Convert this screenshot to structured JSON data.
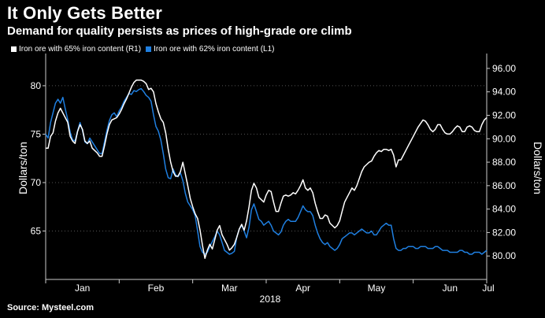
{
  "header": {
    "title": "It Only Gets Better",
    "subtitle": "Demand for quality persists as prices of high-grade ore climb"
  },
  "footer": {
    "source": "Source: Mysteel.com"
  },
  "colors": {
    "background": "#000000",
    "series_white": "#ffffff",
    "series_blue": "#1f7fe0",
    "grid": "#555555"
  },
  "chart_data": {
    "type": "line",
    "title": "",
    "xlabel": "",
    "x_tick_labels": [
      "Jan",
      "Feb",
      "Mar",
      "Apr",
      "May",
      "Jun",
      "Jul"
    ],
    "year_label": "2018",
    "left_axis": {
      "label": "Dollars/ton",
      "ylim": [
        60,
        83
      ],
      "ticks": [
        "65",
        "70",
        "75",
        "80"
      ]
    },
    "right_axis": {
      "label": "Dollars/ton",
      "ylim": [
        78,
        97
      ],
      "ticks": [
        "80.00",
        "82.00",
        "84.00",
        "86.00",
        "88.00",
        "90.00",
        "92.00",
        "94.00",
        "96.00"
      ]
    },
    "grid": "horizontal dotted",
    "legend_placement": "top-left",
    "series": [
      {
        "name": "Iron ore with 65% iron content (R1)",
        "axis": "right",
        "color": "#ffffff",
        "x": [
          0,
          1,
          2,
          3,
          4,
          5,
          6,
          7,
          8,
          9,
          10,
          11,
          12,
          13,
          14,
          15,
          16,
          17,
          18,
          19,
          20,
          21,
          22,
          23,
          24,
          25,
          26,
          27,
          28,
          29,
          30,
          31,
          32,
          33,
          34,
          35,
          36,
          37,
          38,
          39,
          40,
          41,
          42,
          43,
          44,
          45,
          46,
          47,
          48,
          49,
          50,
          51,
          52,
          53,
          54,
          55,
          56,
          57,
          58,
          59,
          60,
          61,
          62,
          63,
          64,
          65,
          66,
          67,
          68,
          69,
          70,
          71,
          72,
          73,
          74,
          75,
          76,
          77,
          78,
          79,
          80,
          81,
          82,
          83,
          84,
          85,
          86,
          87,
          88,
          89,
          90,
          91,
          92,
          93,
          94,
          95,
          96,
          97,
          98,
          99,
          100,
          101,
          102,
          103,
          104,
          105,
          106,
          107,
          108,
          109,
          110,
          111,
          112,
          113,
          114,
          115,
          116,
          117,
          118,
          119,
          120,
          121,
          122,
          123,
          124,
          125,
          126,
          127,
          128,
          129,
          130,
          131,
          132,
          133,
          134,
          135,
          136,
          137,
          138,
          139,
          140,
          141,
          142,
          143,
          144,
          145,
          146,
          147,
          148,
          149,
          150,
          151,
          152,
          153,
          154,
          155,
          156,
          157,
          158,
          159,
          160,
          161,
          162,
          163,
          164,
          165,
          166,
          167,
          168,
          169,
          170,
          171,
          172,
          173,
          174,
          175,
          176,
          177,
          178,
          179,
          180
        ],
        "values": [
          89.2,
          89.2,
          90.2,
          90.5,
          91.5,
          92.2,
          92.6,
          92.2,
          91.8,
          91.4,
          90.2,
          89.8,
          89.6,
          90.6,
          91.2,
          90.8,
          89.8,
          89.6,
          89.8,
          89.2,
          89.0,
          88.8,
          88.5,
          88.5,
          89.4,
          90.4,
          91.2,
          91.6,
          91.7,
          91.8,
          92.1,
          92.5,
          93.0,
          93.4,
          93.9,
          94.4,
          94.8,
          95.0,
          95.0,
          95.0,
          94.9,
          94.7,
          94.2,
          94.3,
          94.0,
          93.0,
          92.3,
          91.7,
          91.4,
          90.5,
          89.1,
          88.0,
          87.2,
          86.8,
          86.8,
          87.2,
          88.0,
          87.0,
          86.0,
          84.9,
          84.2,
          83.6,
          83.2,
          82.2,
          80.9,
          79.8,
          80.5,
          81.0,
          80.6,
          81.4,
          82.2,
          82.6,
          81.8,
          81.4,
          81.0,
          80.5,
          80.7,
          81.0,
          81.6,
          82.3,
          82.7,
          82.2,
          83.0,
          84.2,
          85.6,
          86.2,
          85.8,
          85.0,
          84.8,
          84.6,
          85.2,
          85.6,
          85.5,
          84.6,
          83.8,
          83.8,
          84.5,
          85.1,
          85.2,
          85.1,
          85.2,
          85.4,
          85.3,
          85.6,
          86.0,
          86.5,
          85.8,
          85.6,
          85.8,
          85.4,
          84.5,
          83.8,
          83.2,
          83.2,
          83.5,
          83.4,
          82.8,
          82.6,
          82.4,
          82.6,
          83.0,
          83.8,
          84.6,
          85.0,
          85.4,
          85.8,
          85.6,
          86.0,
          86.6,
          87.2,
          87.6,
          87.8,
          88.0,
          88.1,
          88.5,
          88.8,
          89.0,
          88.9,
          89.1,
          89.1,
          89.0,
          89.1,
          88.6,
          87.6,
          88.2,
          88.2,
          88.6,
          89.0,
          89.4,
          89.8,
          90.2,
          90.6,
          91.0,
          91.3,
          91.6,
          91.5,
          91.2,
          90.8,
          90.6,
          90.8,
          91.2,
          91.2,
          90.8,
          90.5,
          90.4,
          90.4,
          90.6,
          90.9,
          91.1,
          91.0,
          90.6,
          90.6,
          91.0,
          91.1,
          91.0,
          90.7,
          90.6,
          90.6,
          91.2,
          91.6,
          91.8
        ]
      },
      {
        "name": "Iron ore with 62% iron content (L1)",
        "axis": "left",
        "color": "#1f7fe0",
        "x": [
          0,
          1,
          2,
          3,
          4,
          5,
          6,
          7,
          8,
          9,
          10,
          11,
          12,
          13,
          14,
          15,
          16,
          17,
          18,
          19,
          20,
          21,
          22,
          23,
          24,
          25,
          26,
          27,
          28,
          29,
          30,
          31,
          32,
          33,
          34,
          35,
          36,
          37,
          38,
          39,
          40,
          41,
          42,
          43,
          44,
          45,
          46,
          47,
          48,
          49,
          50,
          51,
          52,
          53,
          54,
          55,
          56,
          57,
          58,
          59,
          60,
          61,
          62,
          63,
          64,
          65,
          66,
          67,
          68,
          69,
          70,
          71,
          72,
          73,
          74,
          75,
          76,
          77,
          78,
          79,
          80,
          81,
          82,
          83,
          84,
          85,
          86,
          87,
          88,
          89,
          90,
          91,
          92,
          93,
          94,
          95,
          96,
          97,
          98,
          99,
          100,
          101,
          102,
          103,
          104,
          105,
          106,
          107,
          108,
          109,
          110,
          111,
          112,
          113,
          114,
          115,
          116,
          117,
          118,
          119,
          120,
          121,
          122,
          123,
          124,
          125,
          126,
          127,
          128,
          129,
          130,
          131,
          132,
          133,
          134,
          135,
          136,
          137,
          138,
          139,
          140,
          141,
          142,
          143,
          144,
          145,
          146,
          147,
          148,
          149,
          150,
          151,
          152,
          153,
          154,
          155,
          156,
          157,
          158,
          159,
          160,
          161,
          162,
          163,
          164,
          165,
          166,
          167,
          168,
          169,
          170,
          171,
          172,
          173,
          174,
          175,
          176,
          177,
          178,
          179,
          180
        ],
        "values": [
          75.0,
          74.6,
          76.2,
          77.2,
          78.2,
          78.6,
          78.2,
          78.8,
          77.6,
          76.5,
          75.2,
          74.4,
          74.3,
          75.3,
          76.2,
          75.4,
          74.2,
          74.0,
          74.6,
          74.2,
          73.8,
          73.4,
          73.0,
          73.0,
          74.2,
          75.4,
          76.4,
          77.0,
          77.2,
          76.8,
          77.4,
          77.8,
          78.4,
          78.8,
          79.2,
          79.1,
          79.5,
          79.4,
          79.6,
          79.7,
          79.4,
          79.0,
          78.8,
          78.4,
          77.0,
          75.8,
          75.3,
          74.4,
          73.0,
          71.4,
          70.5,
          70.4,
          71.4,
          70.8,
          70.6,
          71.0,
          70.2,
          68.9,
          68.0,
          67.6,
          67.2,
          66.6,
          65.0,
          63.4,
          62.8,
          62.6,
          62.8,
          63.4,
          63.9,
          64.4,
          65.0,
          64.6,
          63.8,
          63.0,
          62.8,
          62.6,
          62.7,
          62.9,
          64.4,
          65.2,
          65.6,
          65.0,
          64.3,
          65.4,
          67.2,
          67.8,
          67.0,
          66.2,
          66.0,
          65.6,
          65.8,
          66.0,
          65.6,
          65.0,
          64.8,
          64.6,
          64.9,
          65.6,
          66.0,
          66.2,
          66.0,
          66.0,
          66.0,
          66.4,
          67.0,
          67.6,
          67.2,
          67.0,
          67.0,
          66.6,
          65.6,
          64.8,
          64.2,
          63.8,
          63.6,
          63.8,
          63.4,
          63.2,
          63.0,
          63.2,
          63.6,
          64.2,
          64.4,
          64.6,
          64.8,
          64.8,
          64.6,
          64.8,
          65.0,
          65.2,
          65.0,
          64.8,
          64.8,
          65.0,
          64.6,
          64.6,
          65.0,
          65.4,
          65.6,
          65.8,
          65.6,
          65.6,
          64.2,
          63.2,
          63.0,
          63.0,
          63.2,
          63.2,
          63.4,
          63.4,
          63.4,
          63.2,
          63.2,
          63.4,
          63.4,
          63.4,
          63.2,
          63.2,
          63.2,
          63.4,
          63.4,
          63.2,
          63.0,
          63.0,
          63.0,
          62.8,
          62.8,
          62.8,
          62.8,
          63.0,
          63.0,
          62.8,
          62.8,
          62.6,
          62.6,
          62.8,
          62.8,
          62.8,
          62.6,
          62.8,
          63.0
        ]
      }
    ]
  }
}
